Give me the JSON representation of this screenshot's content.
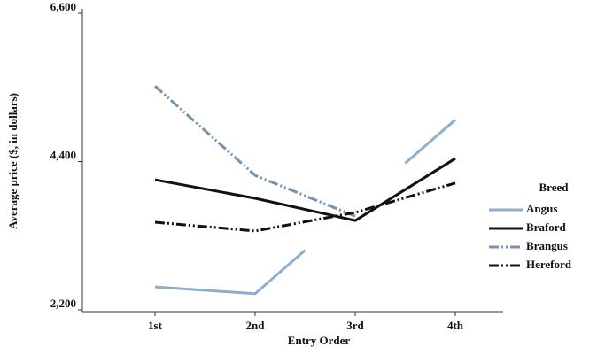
{
  "chart_data": {
    "type": "line",
    "x_label": "Entry Order",
    "y_label": "Average price ($, in dollars)",
    "categories": [
      "1st",
      "2nd",
      "3rd",
      "4th"
    ],
    "ylim": [
      2200,
      6600
    ],
    "yticks": [
      {
        "value": 2200,
        "label": "2,200"
      },
      {
        "value": 4400,
        "label": "4,400"
      },
      {
        "value": 6600,
        "label": "6,600"
      }
    ],
    "legend_title": "Breed",
    "legend_position": "right",
    "series": [
      {
        "name": "Angus",
        "color": "#8eaecb",
        "dash": "solid",
        "values": [
          2540,
          2440,
          3730,
          5020
        ],
        "hidden_points": [
          2
        ]
      },
      {
        "name": "Braford",
        "color": "#111111",
        "dash": "solid",
        "values": [
          4130,
          3855,
          3525,
          4445
        ]
      },
      {
        "name": "Brangus",
        "color": "#7592b0",
        "dash": "dash-dot-dot",
        "values": [
          5520,
          4195,
          3590,
          null
        ]
      },
      {
        "name": "Hereford",
        "color": "#111111",
        "dash": "dash-dot-dot",
        "values": [
          3500,
          3370,
          3645,
          4080
        ]
      }
    ]
  }
}
